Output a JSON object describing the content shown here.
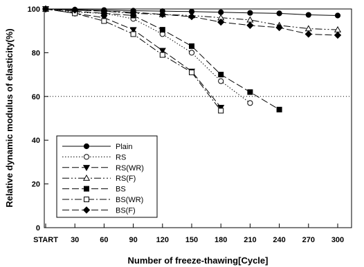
{
  "chart_data": {
    "type": "line",
    "title": "",
    "xlabel": "Number of freeze-thawing[Cycle]",
    "ylabel": "Relative dynamic modulus of elasticity(%)",
    "categories": [
      "START",
      "30",
      "60",
      "90",
      "120",
      "150",
      "180",
      "210",
      "240",
      "270",
      "300"
    ],
    "ylim": [
      0,
      100
    ],
    "yticks": [
      "0",
      "20",
      "40",
      "60",
      "80",
      "100"
    ],
    "reference_line": 60,
    "grid": false,
    "legend_position": "bottom-left",
    "series": [
      {
        "name": "Plain",
        "marker": "filled-circle",
        "dash": "solid",
        "values": [
          100,
          99.7,
          99.5,
          99.2,
          99,
          98.8,
          98.5,
          98.2,
          98,
          97.3,
          97
        ]
      },
      {
        "name": "RS",
        "marker": "open-circle",
        "dash": "dotted",
        "values": [
          100,
          98.5,
          98,
          95.5,
          88.5,
          80,
          67,
          57,
          null,
          null,
          null
        ]
      },
      {
        "name": "RS(WR)",
        "marker": "filled-triangle",
        "dash": "long-dash",
        "values": [
          100,
          98,
          96,
          90.5,
          81,
          71.5,
          55,
          null,
          null,
          null,
          null
        ]
      },
      {
        "name": "RS(F)",
        "marker": "open-triangle",
        "dash": "dash-dot-dot",
        "values": [
          100,
          99.5,
          99,
          98,
          97.5,
          97,
          96,
          95,
          92.5,
          91,
          90.5
        ]
      },
      {
        "name": "BS",
        "marker": "filled-square",
        "dash": "long-dash",
        "values": [
          100,
          99,
          98,
          97,
          90.5,
          83,
          70,
          62,
          54,
          null,
          null
        ]
      },
      {
        "name": "BS(WR)",
        "marker": "open-square",
        "dash": "dash-dot",
        "values": [
          100,
          98,
          94.5,
          88.5,
          79,
          71,
          53.5,
          null,
          null,
          null,
          null
        ]
      },
      {
        "name": "BS(F)",
        "marker": "filled-diamond",
        "dash": "long-dash",
        "values": [
          100,
          99.5,
          99,
          98.5,
          97.5,
          96.5,
          94,
          92.5,
          91.5,
          88.5,
          88
        ]
      }
    ]
  }
}
